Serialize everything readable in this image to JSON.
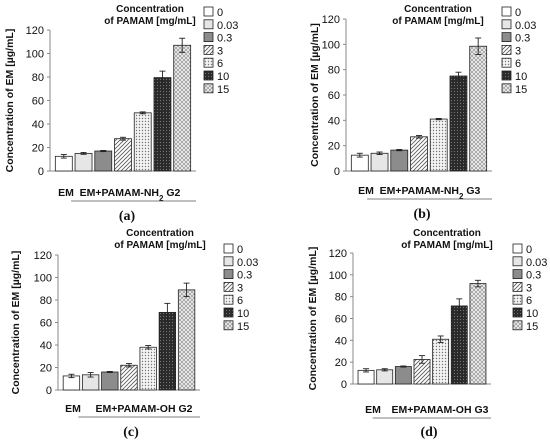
{
  "legend_title": [
    "Concentration",
    "of PAMAM [mg/mL]"
  ],
  "legend_labels": [
    "0",
    "0.03",
    "0.3",
    "3",
    "6",
    "10",
    "15"
  ],
  "colors": {
    "bar_0": "#ffffff",
    "bar_003": "#e6e6e6",
    "bar_03": "#8c8c8c",
    "bar_3": "#ffffff",
    "bar_6": "#d8d8d8",
    "bar_10": "#333333",
    "bar_15": "#e2e2e2",
    "stroke": "#222222"
  },
  "chart_data": [
    {
      "type": "bar",
      "panel": "(a)",
      "panel_letter": "a",
      "ylabel": "Concentration  of EM [µg/mL]",
      "ylim": [
        0,
        120
      ],
      "yticks": [
        0,
        20,
        40,
        60,
        80,
        100,
        120
      ],
      "x_control": "EM",
      "x_group_prefix": "EM+PAMAM-NH",
      "x_group_sub": "2",
      "x_group_suffix": " G2",
      "series": [
        {
          "name": "0",
          "value": 12.5,
          "error": 1.5
        },
        {
          "name": "0.03",
          "value": 15,
          "error": 0.8
        },
        {
          "name": "0.3",
          "value": 17,
          "error": 0.5
        },
        {
          "name": "3",
          "value": 27.5,
          "error": 1.2
        },
        {
          "name": "6",
          "value": 49.5,
          "error": 0.8
        },
        {
          "name": "10",
          "value": 79.5,
          "error": 5.5
        },
        {
          "name": "15",
          "value": 107,
          "error": 6
        }
      ]
    },
    {
      "type": "bar",
      "panel": "(b)",
      "panel_letter": "b",
      "ylabel": "Concentration  of EM [µg/mL]",
      "ylim": [
        0,
        120
      ],
      "yticks": [
        0,
        20,
        40,
        60,
        80,
        100,
        120
      ],
      "x_control": "EM",
      "x_group_prefix": "EM+PAMAM-NH",
      "x_group_sub": "2",
      "x_group_suffix": " G3",
      "series": [
        {
          "name": "0",
          "value": 12.5,
          "error": 1.5
        },
        {
          "name": "0.03",
          "value": 14,
          "error": 1
        },
        {
          "name": "0.3",
          "value": 16.5,
          "error": 0.5
        },
        {
          "name": "3",
          "value": 27,
          "error": 1
        },
        {
          "name": "6",
          "value": 41,
          "error": 0.5
        },
        {
          "name": "10",
          "value": 75,
          "error": 3
        },
        {
          "name": "15",
          "value": 98.5,
          "error": 6.5
        }
      ]
    },
    {
      "type": "bar",
      "panel": "(c)",
      "panel_letter": "c",
      "ylabel": "Concentration  of EM [µg/mL]",
      "ylim": [
        0,
        120
      ],
      "yticks": [
        0,
        20,
        40,
        60,
        80,
        100,
        120
      ],
      "x_control": "EM",
      "x_group_prefix": "EM+PAMAM-OH",
      "x_group_sub": "",
      "x_group_suffix": " G2",
      "series": [
        {
          "name": "0",
          "value": 12.5,
          "error": 1.5
        },
        {
          "name": "0.03",
          "value": 13.5,
          "error": 2
        },
        {
          "name": "0.3",
          "value": 16,
          "error": 0.5
        },
        {
          "name": "3",
          "value": 22,
          "error": 1.5
        },
        {
          "name": "6",
          "value": 38,
          "error": 1.5
        },
        {
          "name": "10",
          "value": 69,
          "error": 8
        },
        {
          "name": "15",
          "value": 89,
          "error": 6
        }
      ]
    },
    {
      "type": "bar",
      "panel": "(d)",
      "panel_letter": "d",
      "ylabel": "Concentration  of EM [µg/mL]",
      "ylim": [
        0,
        120
      ],
      "yticks": [
        0,
        20,
        40,
        60,
        80,
        100,
        120
      ],
      "x_control": "EM",
      "x_group_prefix": "EM+PAMAM-OH",
      "x_group_sub": "",
      "x_group_suffix": " G3",
      "series": [
        {
          "name": "0",
          "value": 12.5,
          "error": 1.5
        },
        {
          "name": "0.03",
          "value": 13,
          "error": 1
        },
        {
          "name": "0.3",
          "value": 16,
          "error": 0.5
        },
        {
          "name": "3",
          "value": 22.5,
          "error": 3.5
        },
        {
          "name": "6",
          "value": 41,
          "error": 3
        },
        {
          "name": "10",
          "value": 71.5,
          "error": 6.5
        },
        {
          "name": "15",
          "value": 92,
          "error": 3
        }
      ]
    }
  ]
}
